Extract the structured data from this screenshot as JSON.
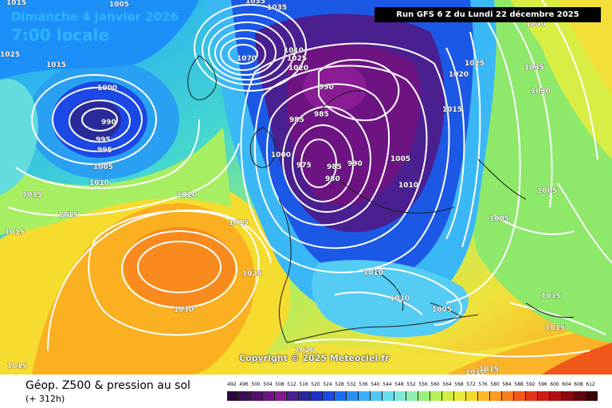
{
  "header": {
    "date": "Dimanche 4 janvier 2026",
    "time": "7:00 locale",
    "run": "Run GFS 6 Z du Lundi 22 décembre 2025"
  },
  "copyright": "Copyright © 2025 Meteociel.fr",
  "footer": {
    "title": "Géop. Z500 & pression au sol",
    "subtitle": "(+ 312h)"
  },
  "isobar_labels": [
    "1005",
    "1035",
    "1035",
    "1010",
    "1070",
    "1025",
    "1020",
    "990",
    "1020",
    "1025",
    "1040",
    "1035",
    "1030",
    "1015",
    "1000",
    "990",
    "995",
    "995",
    "1005",
    "1010",
    "985",
    "985",
    "975",
    "1000",
    "985",
    "980",
    "990",
    "1005",
    "1010",
    "1015",
    "1020",
    "1015",
    "1015",
    "1015",
    "1005",
    "1005",
    "1015",
    "1025",
    "1030",
    "1010",
    "1010",
    "1005",
    "1015",
    "1015",
    "1015",
    "1020",
    "1010",
    "1015",
    "1025",
    "1015"
  ],
  "scale": {
    "ticks": [
      "492",
      "496",
      "500",
      "504",
      "508",
      "512",
      "516",
      "520",
      "524",
      "528",
      "532",
      "536",
      "540",
      "544",
      "548",
      "552",
      "556",
      "560",
      "564",
      "568",
      "572",
      "576",
      "580",
      "584",
      "588",
      "592",
      "596",
      "600",
      "604",
      "608",
      "612"
    ],
    "colors": [
      "#2a0a3a",
      "#3c0d55",
      "#540f6e",
      "#6d1482",
      "#821c90",
      "#4a1f8f",
      "#2a2a9a",
      "#1c2fc8",
      "#1c48e6",
      "#1f6cf2",
      "#2a8ff5",
      "#3aaef8",
      "#4ec8f8",
      "#66ddf0",
      "#7ee8d8",
      "#8ef0b0",
      "#9af07c",
      "#b6f05a",
      "#d2ee42",
      "#ecea36",
      "#f8d82e",
      "#fcbc28",
      "#fb9c22",
      "#f77c1e",
      "#f0581a",
      "#e43418",
      "#cc1c16",
      "#b00e14",
      "#8a0a10",
      "#60060c",
      "#3a0308"
    ]
  },
  "legend": [
    "Géop. Z500",
    "pression au sol"
  ]
}
